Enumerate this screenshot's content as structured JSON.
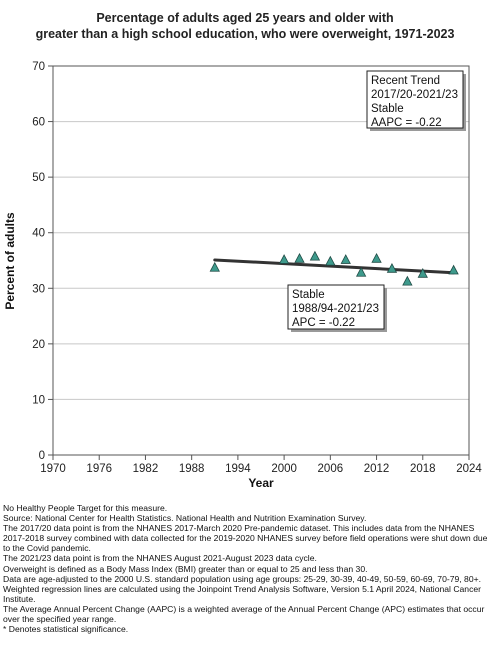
{
  "chart_data": {
    "type": "scatter",
    "title": [
      "Percentage of adults aged 25 years and older with",
      "greater than a high school education, who were overweight, 1971-2023"
    ],
    "xlabel": "Year",
    "ylabel": "Percent of adults",
    "xlim": [
      1970,
      2024
    ],
    "ylim": [
      0,
      70
    ],
    "xticks": [
      "1970",
      "1976",
      "1982",
      "1988",
      "1994",
      "2000",
      "2006",
      "2012",
      "2018",
      "2024"
    ],
    "yticks": [
      "0",
      "10",
      "20",
      "30",
      "40",
      "50",
      "60",
      "70"
    ],
    "grid": "horizontal",
    "points": [
      {
        "x": 1991,
        "y": 33.7
      },
      {
        "x": 2000,
        "y": 35.1
      },
      {
        "x": 2002,
        "y": 35.3
      },
      {
        "x": 2004,
        "y": 35.7
      },
      {
        "x": 2006,
        "y": 34.8
      },
      {
        "x": 2008,
        "y": 35.1
      },
      {
        "x": 2010,
        "y": 32.8
      },
      {
        "x": 2012,
        "y": 35.3
      },
      {
        "x": 2014,
        "y": 33.5
      },
      {
        "x": 2016,
        "y": 31.2
      },
      {
        "x": 2018,
        "y": 32.6
      },
      {
        "x": 2022,
        "y": 33.2
      }
    ],
    "trend_line": {
      "x": [
        1991,
        2022
      ],
      "y": [
        35.1,
        32.8
      ]
    },
    "marker_color": "#3e9a8c",
    "line_color": "#333333",
    "annotations": [
      {
        "id": "recent",
        "lines": [
          "Recent Trend",
          "2017/20-2021/23",
          "Stable",
          "AAPC = -0.22"
        ]
      },
      {
        "id": "overall",
        "lines": [
          "Stable",
          "1988/94-2021/23",
          "APC = -0.22"
        ]
      }
    ]
  },
  "notes": [
    "No Healthy People Target for this measure.",
    "Source: National Center for Health Statistics. National Health and Nutrition Examination Survey.",
    "The 2017/20 data point is from the NHANES 2017-March 2020 Pre-pandemic dataset. This includes data from the NHANES 2017-2018 survey combined with data collected for the 2019-2020 NHANES survey before field operations were shut down due to the Covid pandemic.",
    "The 2021/23 data point is from the NHANES August 2021-August 2023 data cycle.",
    "Overweight is defined as a Body Mass Index (BMI) greater than or equal to 25 and less than 30.",
    "Data are age-adjusted to the 2000 U.S. standard population using age groups: 25-29, 30-39, 40-49, 50-59, 60-69, 70-79, 80+.",
    "Weighted regression lines are calculated using the Joinpoint Trend Analysis Software, Version 5.1 April 2024, National Cancer Institute.",
    "The Average Annual Percent Change (AAPC) is a weighted average of the Annual Percent Change (APC) estimates that occur over the specified year range.",
    "* Denotes statistical significance."
  ]
}
